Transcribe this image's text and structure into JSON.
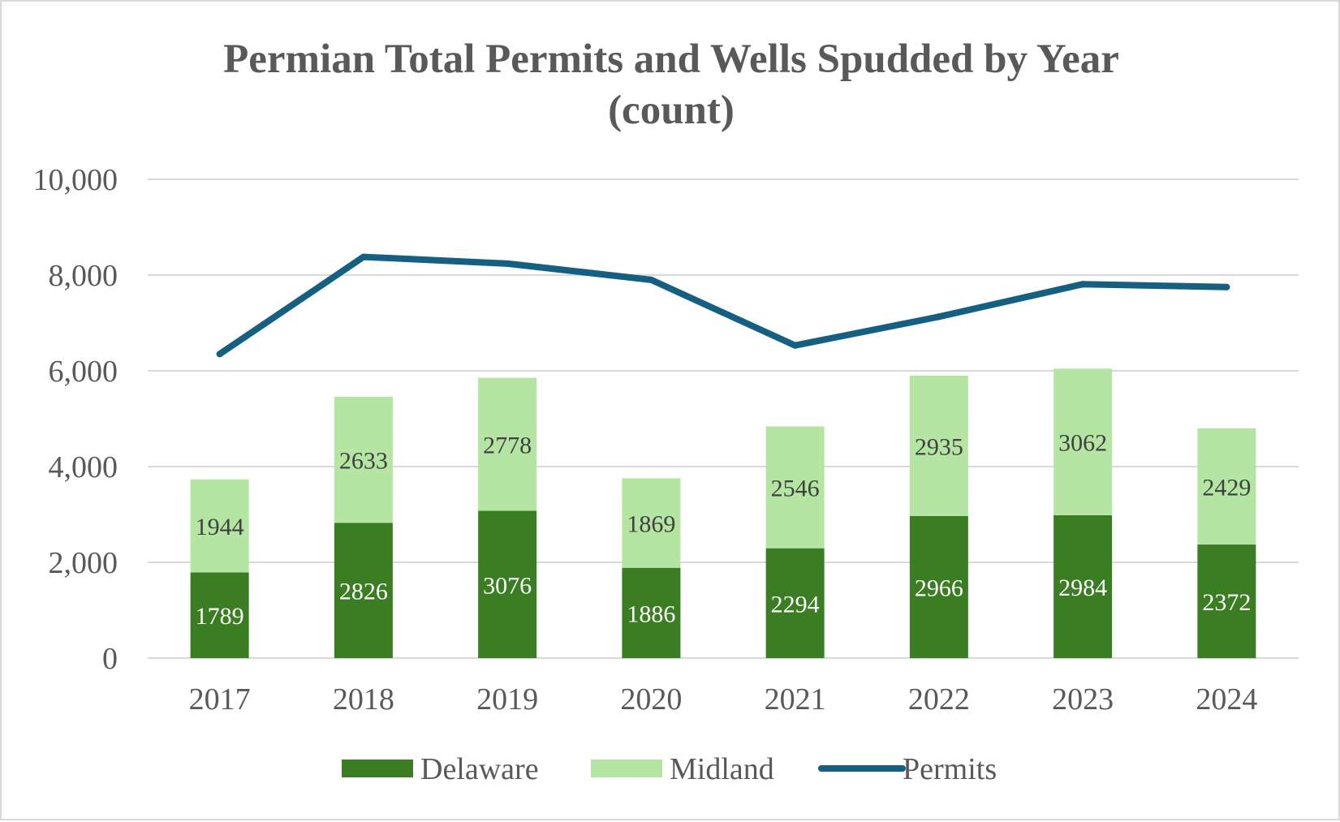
{
  "chart_data": {
    "type": "bar",
    "stacked": true,
    "title": "Permian Total Permits and Wells Spudded by Year",
    "subtitle": "(count)",
    "xlabel": "",
    "ylabel": "",
    "ylim": [
      0,
      10000
    ],
    "yticks": [
      0,
      2000,
      4000,
      6000,
      8000,
      10000
    ],
    "ytick_labels": [
      "0",
      "2,000",
      "4,000",
      "6,000",
      "8,000",
      "10,000"
    ],
    "grid": true,
    "legend_position": "bottom",
    "categories": [
      "2017",
      "2018",
      "2019",
      "2020",
      "2021",
      "2022",
      "2023",
      "2024"
    ],
    "series": [
      {
        "name": "Delaware",
        "kind": "bar",
        "color": "#3b7d23",
        "label_color": "#ffffff",
        "values": [
          1789,
          2826,
          3076,
          1886,
          2294,
          2966,
          2984,
          2372
        ]
      },
      {
        "name": "Midland",
        "kind": "bar",
        "color": "#b4e5a2",
        "label_color": "#404040",
        "values": [
          1944,
          2633,
          2778,
          1869,
          2546,
          2935,
          3062,
          2429
        ]
      },
      {
        "name": "Permits",
        "kind": "line",
        "color": "#156082",
        "values": [
          6350,
          8380,
          8240,
          7900,
          6530,
          7130,
          7810,
          7750
        ]
      }
    ]
  }
}
